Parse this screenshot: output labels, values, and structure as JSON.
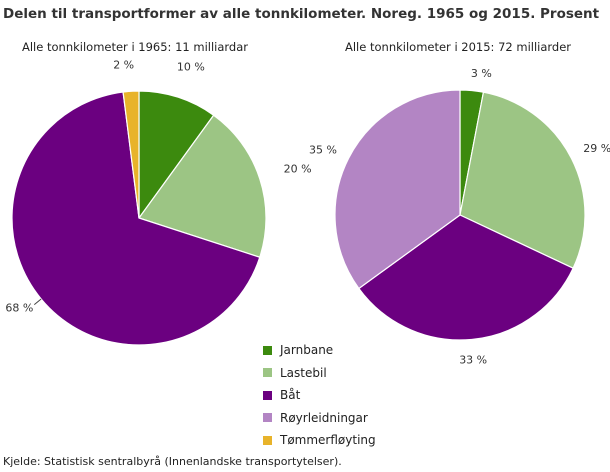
{
  "chart_data": {
    "type": "pie",
    "title": "Delen til transportformer av alle tonnkilometer. Noreg. 1965 og 2015. Prosent",
    "categories": [
      "Jarnbane",
      "Lastebil",
      "Båt",
      "Røyrleidningar",
      "Tømmerfløyting"
    ],
    "colors": [
      "#3c8a0e",
      "#9cc584",
      "#6b0080",
      "#b385c4",
      "#e8b32a"
    ],
    "pies": [
      {
        "subtitle": "Alle tonnkilometer  i 1965:  11 milliardar",
        "values": [
          10,
          20,
          68,
          0,
          2
        ],
        "labels": [
          "10 %",
          "20  %",
          "68  %",
          "",
          "2  %"
        ]
      },
      {
        "subtitle": "Alle tonnkilometer  i 2015:  72 milliarder",
        "values": [
          3,
          29,
          33,
          35,
          0
        ],
        "labels": [
          "3 %",
          "29 %",
          "33 %",
          "35 %",
          ""
        ]
      }
    ],
    "legend_position": "bottom-center"
  },
  "source": "Kjelde: Statistisk sentralbyrå (Innenlandske transportytelser)."
}
